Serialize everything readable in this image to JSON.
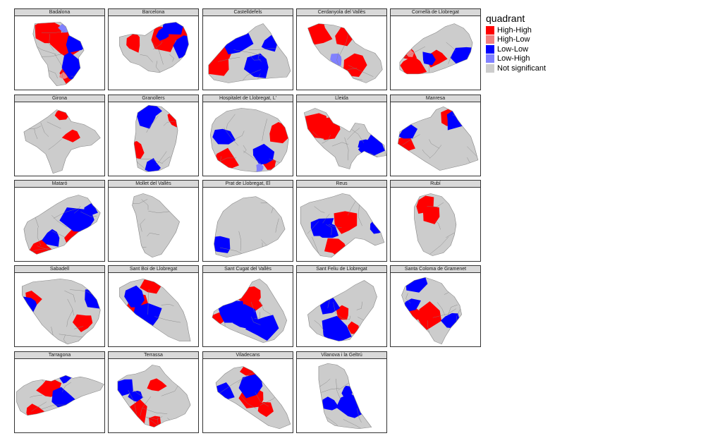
{
  "colors": {
    "High-High": "#ff0000",
    "High-Low": "#f08080",
    "Low-Low": "#0000ff",
    "Low-High": "#8080ff",
    "Not significant": "#cccccc"
  },
  "legend": {
    "title": "quadrant",
    "items": [
      "High-High",
      "High-Low",
      "Low-Low",
      "Low-High",
      "Not significant"
    ]
  },
  "panels": [
    {
      "name": "Badalona",
      "quadrants": [
        "High-High",
        "High-Low",
        "Low-Low",
        "Low-High",
        "Not significant"
      ]
    },
    {
      "name": "Barcelona",
      "quadrants": [
        "High-High",
        "Low-Low",
        "Not significant"
      ]
    },
    {
      "name": "Castelldefels",
      "quadrants": [
        "High-High",
        "Low-Low",
        "Not significant"
      ]
    },
    {
      "name": "Cerdanyola del Vallès",
      "quadrants": [
        "High-High",
        "Low-High",
        "Not significant"
      ]
    },
    {
      "name": "Cornellà de Llobregat",
      "quadrants": [
        "High-High",
        "High-Low",
        "Low-Low",
        "Not significant"
      ]
    },
    {
      "name": "Girona",
      "quadrants": [
        "High-High",
        "Not significant"
      ]
    },
    {
      "name": "Granollers",
      "quadrants": [
        "High-High",
        "Low-Low",
        "Not significant"
      ]
    },
    {
      "name": "Hospitalet de Llobregat, L'",
      "quadrants": [
        "High-High",
        "Low-Low",
        "Low-High",
        "Not significant"
      ]
    },
    {
      "name": "Lleida",
      "quadrants": [
        "High-High",
        "Low-Low",
        "Not significant"
      ]
    },
    {
      "name": "Manresa",
      "quadrants": [
        "High-High",
        "Low-Low",
        "Not significant"
      ]
    },
    {
      "name": "Mataró",
      "quadrants": [
        "High-High",
        "Low-Low",
        "Not significant"
      ]
    },
    {
      "name": "Mollet del Vallès",
      "quadrants": [
        "Not significant"
      ]
    },
    {
      "name": "Prat de Llobregat, El",
      "quadrants": [
        "Low-Low",
        "Not significant"
      ]
    },
    {
      "name": "Reus",
      "quadrants": [
        "High-High",
        "Low-Low",
        "Not significant"
      ]
    },
    {
      "name": "Rubí",
      "quadrants": [
        "High-High",
        "Not significant"
      ]
    },
    {
      "name": "Sabadell",
      "quadrants": [
        "High-High",
        "Low-Low",
        "Not significant"
      ]
    },
    {
      "name": "Sant Boi de Llobregat",
      "quadrants": [
        "High-High",
        "Low-Low",
        "Not significant"
      ]
    },
    {
      "name": "Sant Cugat del Vallès",
      "quadrants": [
        "High-High",
        "Low-Low",
        "Not significant"
      ]
    },
    {
      "name": "Sant Feliu de Llobregat",
      "quadrants": [
        "High-High",
        "Low-Low",
        "Not significant"
      ]
    },
    {
      "name": "Santa Coloma de Gramenet",
      "quadrants": [
        "High-High",
        "Low-Low",
        "Not significant"
      ]
    },
    {
      "name": "Tarragona",
      "quadrants": [
        "High-High",
        "Low-Low",
        "Not significant"
      ]
    },
    {
      "name": "Terrassa",
      "quadrants": [
        "High-High",
        "Low-Low",
        "Not significant"
      ]
    },
    {
      "name": "Viladecans",
      "quadrants": [
        "High-High",
        "Low-Low",
        "Not significant"
      ]
    },
    {
      "name": "Vilanova i la Geltrú",
      "quadrants": [
        "Low-Low",
        "Not significant"
      ]
    }
  ]
}
